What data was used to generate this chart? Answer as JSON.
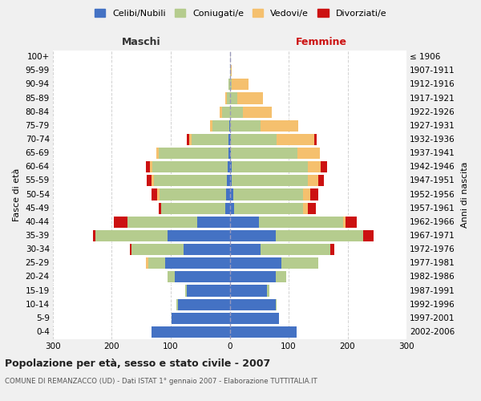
{
  "age_groups": [
    "0-4",
    "5-9",
    "10-14",
    "15-19",
    "20-24",
    "25-29",
    "30-34",
    "35-39",
    "40-44",
    "45-49",
    "50-54",
    "55-59",
    "60-64",
    "65-69",
    "70-74",
    "75-79",
    "80-84",
    "85-89",
    "90-94",
    "95-99",
    "100+"
  ],
  "birth_years": [
    "2002-2006",
    "1997-2001",
    "1992-1996",
    "1987-1991",
    "1982-1986",
    "1977-1981",
    "1972-1976",
    "1967-1971",
    "1962-1966",
    "1957-1961",
    "1952-1956",
    "1947-1951",
    "1942-1946",
    "1937-1941",
    "1932-1936",
    "1927-1931",
    "1922-1926",
    "1917-1921",
    "1912-1916",
    "1907-1911",
    "≤ 1906"
  ],
  "male_celibi": [
    133,
    98,
    88,
    73,
    93,
    110,
    78,
    105,
    55,
    8,
    6,
    5,
    3,
    2,
    2,
    1,
    0,
    0,
    0,
    0,
    0
  ],
  "male_coniugati": [
    0,
    0,
    2,
    2,
    13,
    28,
    88,
    123,
    118,
    108,
    113,
    123,
    128,
    118,
    63,
    28,
    13,
    5,
    2,
    0,
    0
  ],
  "male_vedovi": [
    0,
    0,
    0,
    0,
    0,
    4,
    0,
    0,
    0,
    0,
    4,
    4,
    4,
    4,
    4,
    4,
    4,
    2,
    0,
    0,
    0
  ],
  "male_divorziati": [
    0,
    0,
    0,
    0,
    0,
    0,
    4,
    4,
    23,
    4,
    9,
    9,
    7,
    0,
    4,
    0,
    0,
    0,
    0,
    0,
    0
  ],
  "female_nubili": [
    113,
    83,
    78,
    63,
    78,
    88,
    53,
    78,
    50,
    7,
    6,
    4,
    4,
    2,
    2,
    0,
    0,
    0,
    0,
    0,
    0
  ],
  "female_coniugate": [
    0,
    0,
    2,
    4,
    18,
    63,
    118,
    148,
    143,
    118,
    118,
    128,
    128,
    113,
    78,
    53,
    23,
    13,
    4,
    2,
    0
  ],
  "female_vedove": [
    0,
    0,
    0,
    0,
    0,
    0,
    0,
    0,
    4,
    8,
    13,
    18,
    23,
    38,
    63,
    63,
    48,
    43,
    28,
    2,
    0
  ],
  "female_divorziate": [
    0,
    0,
    0,
    0,
    0,
    0,
    7,
    18,
    18,
    13,
    13,
    10,
    10,
    0,
    4,
    0,
    0,
    0,
    0,
    0,
    0
  ],
  "color_celibi": "#4472c4",
  "color_coniugati": "#b5cc8e",
  "color_vedovi": "#f5c06e",
  "color_divorziati": "#cc1111",
  "bg_color": "#f0f0f0",
  "plot_bg": "#ffffff",
  "grid_color": "#cccccc",
  "xlim": 300,
  "title": "Popolazione per età, sesso e stato civile - 2007",
  "subtitle": "COMUNE DI REMANZACCO (UD) - Dati ISTAT 1° gennaio 2007 - Elaborazione TUTTITALIA.IT",
  "ylabel_left": "Fasce di età",
  "ylabel_right": "Anni di nascita",
  "label_maschi": "Maschi",
  "label_femmine": "Femmine",
  "legend_labels": [
    "Celibi/Nubili",
    "Coniugati/e",
    "Vedovi/e",
    "Divorziati/e"
  ]
}
